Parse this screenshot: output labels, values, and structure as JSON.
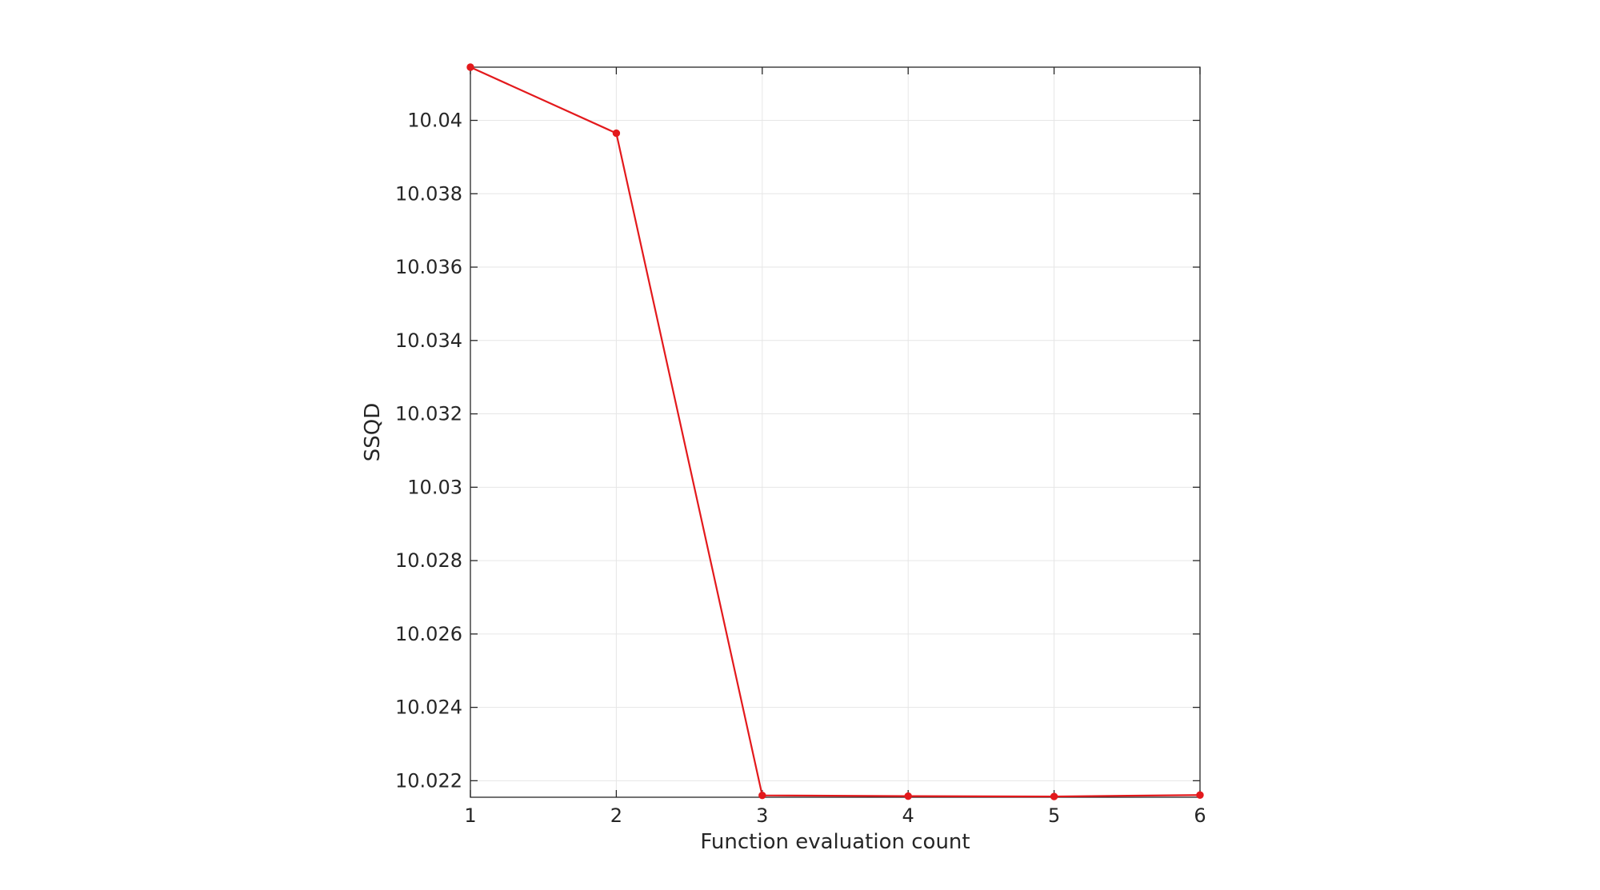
{
  "chart_data": {
    "type": "line",
    "title": "",
    "xlabel": "Function evaluation count",
    "ylabel": "SSQD",
    "x": [
      1,
      2,
      3,
      4,
      5,
      6
    ],
    "series": [
      {
        "color": "#e3191c",
        "marker": "filled-circle",
        "values": [
          10.04145,
          10.03965,
          10.0216,
          10.02158,
          10.02157,
          10.02161
        ]
      }
    ],
    "xlim": [
      1,
      6
    ],
    "ylim": [
      10.02155,
      10.04145
    ],
    "xticks": [
      1,
      2,
      3,
      4,
      5,
      6
    ],
    "xtick_labels": [
      "1",
      "2",
      "3",
      "4",
      "5",
      "6"
    ],
    "yticks": [
      10.022,
      10.024,
      10.026,
      10.028,
      10.03,
      10.032,
      10.034,
      10.036,
      10.038,
      10.04
    ],
    "ytick_labels": [
      "10.022",
      "10.024",
      "10.026",
      "10.028",
      "10.03",
      "10.032",
      "10.034",
      "10.036",
      "10.038",
      "10.04"
    ],
    "grid": true,
    "box": true
  }
}
